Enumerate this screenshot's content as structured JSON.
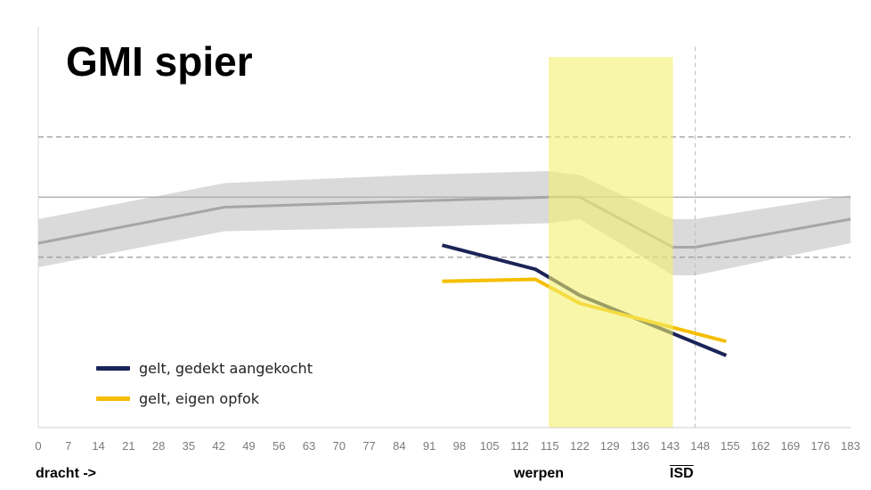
{
  "chart_data": {
    "type": "line",
    "title": "GMI spier",
    "x_ticks": [
      "0",
      "7",
      "14",
      "21",
      "28",
      "35",
      "42",
      "49",
      "56",
      "63",
      "70",
      "77",
      "84",
      "91",
      "98",
      "105",
      "112",
      "115",
      "122",
      "129",
      "136",
      "143",
      "148",
      "155",
      "162",
      "169",
      "176",
      "183"
    ],
    "xlim": [
      0,
      183
    ],
    "ylim": [
      0,
      1
    ],
    "reference_band": {
      "x": [
        0,
        42,
        84,
        115,
        122,
        143,
        148,
        183
      ],
      "mean": [
        0.46,
        0.55,
        0.565,
        0.575,
        0.575,
        0.45,
        0.45,
        0.52
      ],
      "upper": [
        0.52,
        0.61,
        0.63,
        0.64,
        0.63,
        0.52,
        0.52,
        0.58
      ],
      "lower": [
        0.4,
        0.49,
        0.5,
        0.51,
        0.52,
        0.38,
        0.38,
        0.46
      ]
    },
    "reference_lines": [
      {
        "name": "solid",
        "y": 0.575,
        "style": "solid"
      },
      {
        "name": "upper-dashed",
        "y": 0.725,
        "style": "dashed"
      },
      {
        "name": "lower-dashed",
        "y": 0.425,
        "style": "dashed"
      }
    ],
    "series": [
      {
        "name": "gelt, gedekt aangekocht",
        "color": "#1b2457",
        "x": [
          91,
          112,
          122,
          155
        ],
        "y": [
          0.455,
          0.395,
          0.33,
          0.18
        ]
      },
      {
        "name": "gelt, eigen opfok",
        "color": "#f5be00",
        "x": [
          91,
          112,
          122,
          155
        ],
        "y": [
          0.365,
          0.37,
          0.31,
          0.215
        ]
      }
    ],
    "highlight_region": {
      "x": [
        115,
        143
      ],
      "color": "#f4f06e"
    },
    "vline": {
      "x": 148,
      "style": "dashed"
    },
    "annotations": {
      "dracht": "dracht ->",
      "werpen": "werpen",
      "isd": "ISD"
    },
    "legend_position": "bottom-left",
    "grid": false
  }
}
